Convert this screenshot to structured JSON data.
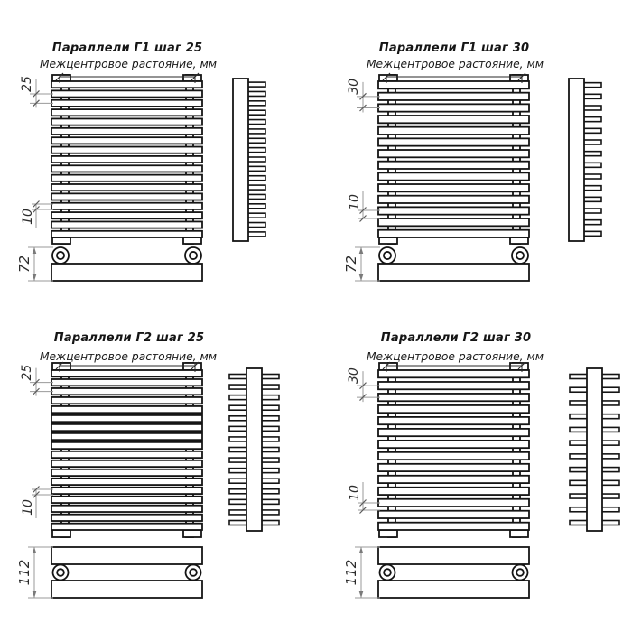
{
  "page": {
    "background": "#ffffff",
    "line_color": "#141414",
    "dim_color": "#9a9a9a",
    "tick_color": "#5a5a5a",
    "text_color": "#2c2c2c"
  },
  "drawings": [
    {
      "title": "Параллели Г1 шаг 25",
      "subtitle": "Межцентровое растояние, мм",
      "model": "Г1",
      "step_mm": 25,
      "step_label": "25",
      "bottom_gap_label": "10",
      "depth_label": "72",
      "front_bar_count": 17,
      "side_tab_count": 17,
      "two_sided": false
    },
    {
      "title": "Параллели Г1 шаг 30",
      "subtitle": "Межцентровое растояние, мм",
      "model": "Г1",
      "step_mm": 30,
      "step_label": "30",
      "bottom_gap_label": "10",
      "depth_label": "72",
      "front_bar_count": 14,
      "side_tab_count": 14,
      "two_sided": false
    },
    {
      "title": "Параллели Г2 шаг 25",
      "subtitle": "Межцентровое растояние, мм",
      "model": "Г2",
      "step_mm": 25,
      "step_label": "25",
      "bottom_gap_label": "10",
      "depth_label": "112",
      "front_bar_count": 18,
      "side_tab_count": 15,
      "two_sided": true
    },
    {
      "title": "Параллели Г2 шаг 30",
      "subtitle": "Межцентровое растояние, мм",
      "model": "Г2",
      "step_mm": 30,
      "step_label": "30",
      "bottom_gap_label": "10",
      "depth_label": "112",
      "front_bar_count": 14,
      "side_tab_count": 12,
      "two_sided": true
    }
  ]
}
